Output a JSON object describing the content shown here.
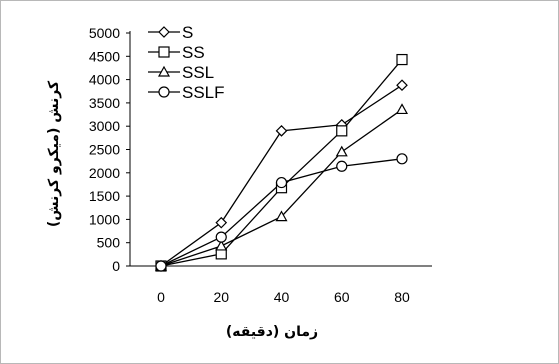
{
  "chart_data": {
    "type": "line",
    "title": "",
    "xlabel": "زمان (دقیقه)",
    "ylabel": "کرنش (میکرو کرنش)",
    "x": [
      0,
      20,
      40,
      60,
      80
    ],
    "xlim": [
      0,
      80
    ],
    "ylim": [
      0,
      5000
    ],
    "yticks": [
      0,
      500,
      1000,
      1500,
      2000,
      2500,
      3000,
      3500,
      4000,
      4500,
      5000
    ],
    "xticks": [
      0,
      20,
      40,
      60,
      80
    ],
    "grid": false,
    "legend": "top-left",
    "series": [
      {
        "name": "S",
        "marker": "diamond",
        "values": [
          0,
          930,
          2900,
          3030,
          3880
        ]
      },
      {
        "name": "SS",
        "marker": "square",
        "values": [
          0,
          260,
          1680,
          2900,
          4430
        ]
      },
      {
        "name": "SSL",
        "marker": "triangle",
        "values": [
          0,
          430,
          1060,
          2450,
          3360
        ]
      },
      {
        "name": "SSLF",
        "marker": "circle",
        "values": [
          0,
          620,
          1790,
          2140,
          2300
        ]
      }
    ]
  }
}
